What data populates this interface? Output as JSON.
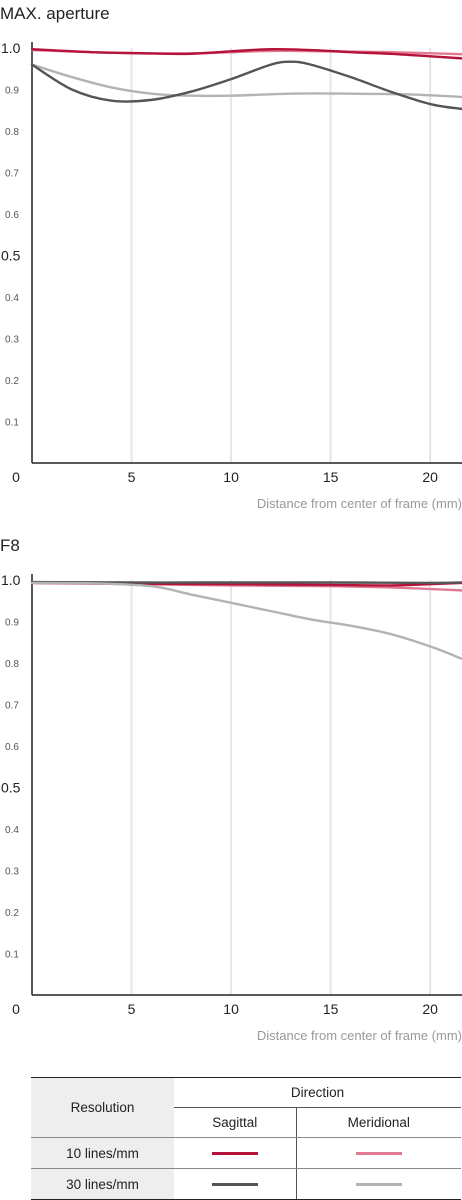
{
  "chart_data": [
    {
      "type": "line",
      "title": "MAX. aperture",
      "xlabel": "Distance from center of frame (mm)",
      "ylabel": "",
      "xlim": [
        0,
        21.6
      ],
      "ylim": [
        0,
        1.0
      ],
      "xticks": [
        "0",
        "5",
        "10",
        "15",
        "20"
      ],
      "yticks": [
        "0.1",
        "0.2",
        "0.3",
        "0.4",
        "0.5",
        "0.6",
        "0.7",
        "0.8",
        "0.9",
        "1.0"
      ],
      "grid": "vertical",
      "series": [
        {
          "name": "10 lines/mm Meridional",
          "color": "#e07a93",
          "x": [
            0,
            3,
            6,
            9,
            12,
            15,
            18,
            21.6
          ],
          "y": [
            0.995,
            0.99,
            0.987,
            0.988,
            0.993,
            0.992,
            0.99,
            0.985
          ]
        },
        {
          "name": "10 lines/mm Sagittal",
          "color": "#b5133a",
          "x": [
            0,
            3,
            6,
            8,
            10,
            12,
            14,
            16,
            18,
            20,
            21.6
          ],
          "y": [
            0.997,
            0.99,
            0.987,
            0.986,
            0.992,
            0.997,
            0.995,
            0.99,
            0.986,
            0.98,
            0.975
          ]
        },
        {
          "name": "30 lines/mm Meridional",
          "color": "#b3b3b3",
          "x": [
            0,
            2,
            4,
            6,
            8,
            10,
            13,
            16,
            19,
            21.6
          ],
          "y": [
            0.96,
            0.93,
            0.905,
            0.89,
            0.885,
            0.885,
            0.89,
            0.89,
            0.888,
            0.882
          ]
        },
        {
          "name": "30 lines/mm Sagittal",
          "color": "#555555",
          "x": [
            0,
            2,
            4,
            6,
            8,
            10,
            12,
            13,
            14,
            16,
            18,
            20,
            21.6
          ],
          "y": [
            0.96,
            0.9,
            0.873,
            0.875,
            0.895,
            0.925,
            0.96,
            0.967,
            0.96,
            0.93,
            0.895,
            0.865,
            0.853
          ]
        }
      ]
    },
    {
      "type": "line",
      "title": "F8",
      "xlabel": "Distance from center of frame (mm)",
      "ylabel": "",
      "xlim": [
        0,
        21.6
      ],
      "ylim": [
        0,
        1.0
      ],
      "xticks": [
        "0",
        "5",
        "10",
        "15",
        "20"
      ],
      "yticks": [
        "0.1",
        "0.2",
        "0.3",
        "0.4",
        "0.5",
        "0.6",
        "0.7",
        "0.8",
        "0.9",
        "1.0"
      ],
      "grid": "vertical",
      "series": [
        {
          "name": "10 lines/mm Meridional",
          "color": "#e07a93",
          "x": [
            0,
            5,
            10,
            15,
            18,
            21.6
          ],
          "y": [
            0.993,
            0.99,
            0.987,
            0.985,
            0.982,
            0.975
          ]
        },
        {
          "name": "10 lines/mm Sagittal",
          "color": "#b5133a",
          "x": [
            0,
            5,
            10,
            15,
            18,
            20,
            21.6
          ],
          "y": [
            0.993,
            0.991,
            0.99,
            0.988,
            0.987,
            0.99,
            0.993
          ]
        },
        {
          "name": "30 lines/mm Sagittal",
          "color": "#555555",
          "x": [
            0,
            5,
            10,
            15,
            20,
            21.6
          ],
          "y": [
            0.995,
            0.994,
            0.994,
            0.994,
            0.993,
            0.994
          ]
        },
        {
          "name": "30 lines/mm Meridional",
          "color": "#b3b3b3",
          "x": [
            0,
            3,
            6,
            8,
            10,
            12,
            14,
            16,
            18,
            20,
            21.6
          ],
          "y": [
            0.993,
            0.992,
            0.985,
            0.965,
            0.945,
            0.925,
            0.905,
            0.89,
            0.87,
            0.84,
            0.81
          ]
        }
      ]
    }
  ],
  "legend": {
    "resolution_label": "Resolution",
    "direction_label": "Direction",
    "sagittal_label": "Sagittal",
    "meridional_label": "Meridional",
    "rows": [
      {
        "label": "10 lines/mm",
        "sagittal_color": "#b5133a",
        "meridional_color": "#e07a93"
      },
      {
        "label": "30 lines/mm",
        "sagittal_color": "#555555",
        "meridional_color": "#b3b3b3"
      }
    ]
  }
}
